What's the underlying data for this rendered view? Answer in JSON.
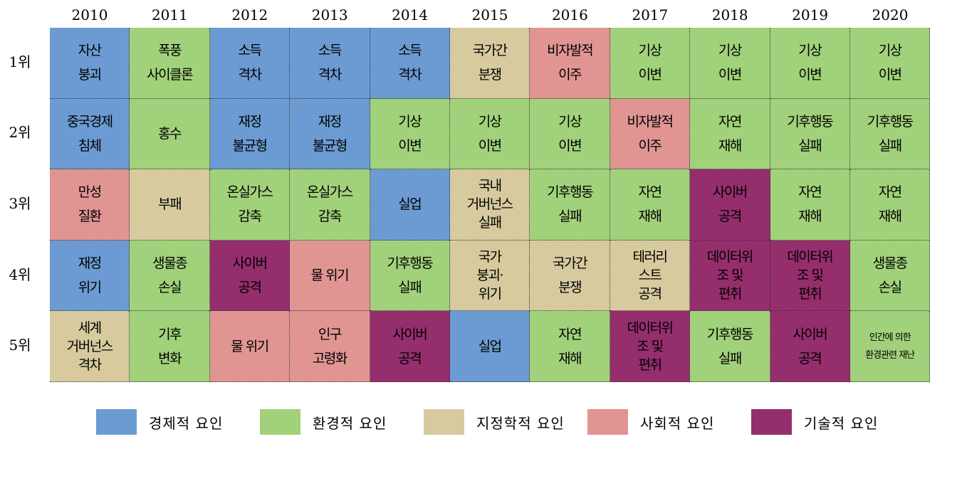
{
  "chart_data": {
    "type": "table",
    "years": [
      "2010",
      "2011",
      "2012",
      "2013",
      "2014",
      "2015",
      "2016",
      "2017",
      "2018",
      "2019",
      "2020"
    ],
    "ranks": [
      "1위",
      "2위",
      "3위",
      "4위",
      "5위"
    ],
    "categories": [
      {
        "key": "eco",
        "label": "경제적 요인",
        "color": "#6b9bd2"
      },
      {
        "key": "env",
        "label": "환경적 요인",
        "color": "#a1d17a"
      },
      {
        "key": "geo",
        "label": "지정학적 요인",
        "color": "#d6ca9e"
      },
      {
        "key": "soc",
        "label": "사회적 요인",
        "color": "#e09593"
      },
      {
        "key": "tech",
        "label": "기술적 요인",
        "color": "#952e6d"
      }
    ],
    "cells": [
      [
        {
          "text": "자산\n붕괴",
          "cat": "eco"
        },
        {
          "text": "폭풍\n사이클론",
          "cat": "env"
        },
        {
          "text": "소득\n격차",
          "cat": "eco"
        },
        {
          "text": "소득\n격차",
          "cat": "eco"
        },
        {
          "text": "소득\n격차",
          "cat": "eco"
        },
        {
          "text": "국가간\n분쟁",
          "cat": "geo"
        },
        {
          "text": "비자발적\n이주",
          "cat": "soc"
        },
        {
          "text": "기상\n이변",
          "cat": "env"
        },
        {
          "text": "기상\n이변",
          "cat": "env"
        },
        {
          "text": "기상\n이변",
          "cat": "env"
        },
        {
          "text": "기상\n이변",
          "cat": "env"
        }
      ],
      [
        {
          "text": "중국경제\n침체",
          "cat": "eco"
        },
        {
          "text": "홍수",
          "cat": "env"
        },
        {
          "text": "재정\n불균형",
          "cat": "eco"
        },
        {
          "text": "재정\n불균형",
          "cat": "eco"
        },
        {
          "text": "기상\n이변",
          "cat": "env"
        },
        {
          "text": "기상\n이변",
          "cat": "env"
        },
        {
          "text": "기상\n이변",
          "cat": "env"
        },
        {
          "text": "비자발적\n이주",
          "cat": "soc"
        },
        {
          "text": "자연\n재해",
          "cat": "env"
        },
        {
          "text": "기후행동\n실패",
          "cat": "env"
        },
        {
          "text": "기후행동\n실패",
          "cat": "env"
        }
      ],
      [
        {
          "text": "만성\n질환",
          "cat": "soc"
        },
        {
          "text": "부패",
          "cat": "geo"
        },
        {
          "text": "온실가스\n감축",
          "cat": "env"
        },
        {
          "text": "온실가스\n감축",
          "cat": "env"
        },
        {
          "text": "실업",
          "cat": "eco"
        },
        {
          "text": "국내\n거버넌스\n실패",
          "cat": "geo"
        },
        {
          "text": "기후행동\n실패",
          "cat": "env"
        },
        {
          "text": "자연\n재해",
          "cat": "env"
        },
        {
          "text": "사이버\n공격",
          "cat": "tech"
        },
        {
          "text": "자연\n재해",
          "cat": "env"
        },
        {
          "text": "자연\n재해",
          "cat": "env"
        }
      ],
      [
        {
          "text": "재정\n위기",
          "cat": "eco"
        },
        {
          "text": "생물종\n손실",
          "cat": "env"
        },
        {
          "text": "사이버\n공격",
          "cat": "tech"
        },
        {
          "text": "물 위기",
          "cat": "soc"
        },
        {
          "text": "기후행동\n실패",
          "cat": "env"
        },
        {
          "text": "국가\n붕괴·\n위기",
          "cat": "geo"
        },
        {
          "text": "국가간\n분쟁",
          "cat": "geo"
        },
        {
          "text": "테러리\n스트\n공격",
          "cat": "geo"
        },
        {
          "text": "데이터위\n조 및\n편취",
          "cat": "tech"
        },
        {
          "text": "데이터위\n조 및\n편취",
          "cat": "tech"
        },
        {
          "text": "생물종\n손실",
          "cat": "env"
        }
      ],
      [
        {
          "text": "세계\n거버넌스\n격차",
          "cat": "geo"
        },
        {
          "text": "기후\n변화",
          "cat": "env"
        },
        {
          "text": "물 위기",
          "cat": "soc"
        },
        {
          "text": "인구\n고령화",
          "cat": "soc"
        },
        {
          "text": "사이버\n공격",
          "cat": "tech"
        },
        {
          "text": "실업",
          "cat": "eco"
        },
        {
          "text": "자연\n재해",
          "cat": "env"
        },
        {
          "text": "데이터위\n조 및\n편취",
          "cat": "tech"
        },
        {
          "text": "기후행동\n실패",
          "cat": "env"
        },
        {
          "text": "사이버\n공격",
          "cat": "tech"
        },
        {
          "text": "인간에 의한\n환경관련 재난",
          "cat": "env"
        }
      ]
    ]
  }
}
